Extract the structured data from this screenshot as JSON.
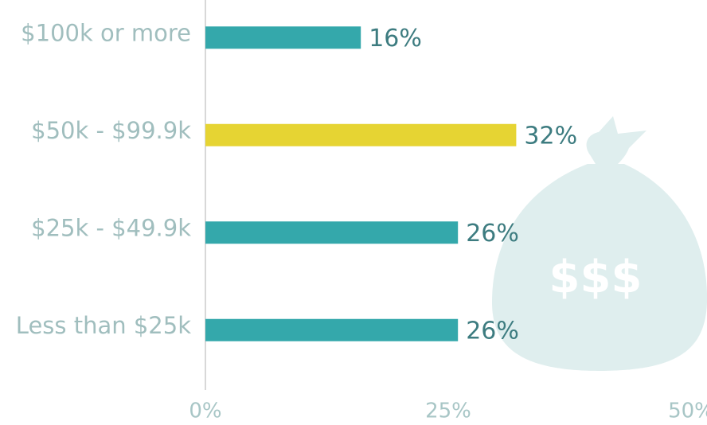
{
  "chart_data": {
    "type": "hbar",
    "categories": [
      "$100k or more",
      "$50k - $99.9k",
      "$25k - $49.9k",
      "Less than $25k"
    ],
    "values": [
      16,
      32,
      26,
      26
    ],
    "value_labels": [
      "16%",
      "32%",
      "26%",
      "26%"
    ],
    "colors": [
      "#34a8ab",
      "#e6d433",
      "#34a8ab",
      "#34a8ab"
    ],
    "xlim": [
      0,
      50
    ],
    "xticks": [
      {
        "value": 0,
        "label": "0%"
      },
      {
        "value": 25,
        "label": "25%"
      },
      {
        "value": 50,
        "label": "50%"
      }
    ],
    "background_label": "$$$"
  }
}
